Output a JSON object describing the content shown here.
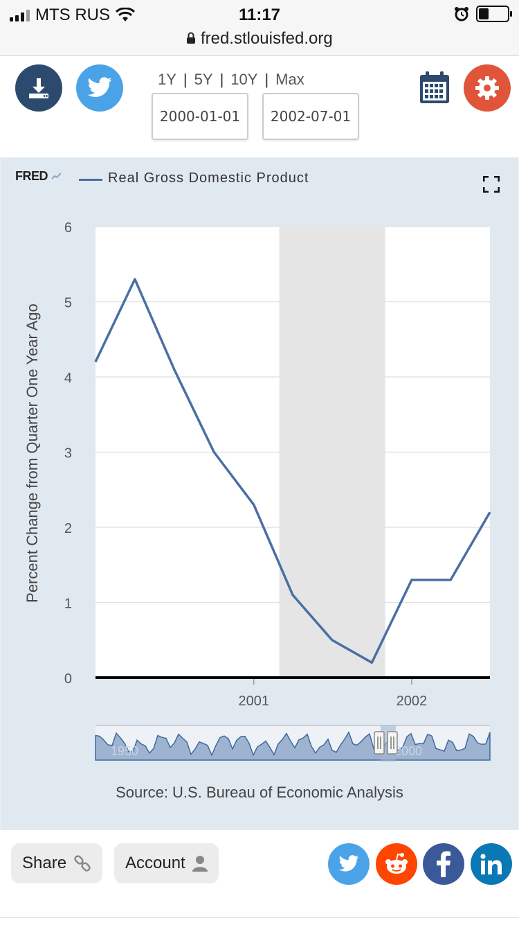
{
  "status_bar": {
    "carrier": "MTS RUS",
    "time": "11:17",
    "url": "fred.stlouisfed.org"
  },
  "toolbar": {
    "range_links": [
      "1Y",
      "5Y",
      "10Y",
      "Max"
    ],
    "start_date": "2000-01-01",
    "end_date": "2002-07-01",
    "colors": {
      "download": "#2c4a6e",
      "twitter": "#4aa3e6",
      "calendar": "#2c4a6e",
      "settings": "#e0543a"
    }
  },
  "chart_header": {
    "logo": "FRED",
    "legend": "Real Gross Domestic Product"
  },
  "chart_data": {
    "type": "line",
    "title": "",
    "legend": [
      "Real Gross Domestic Product"
    ],
    "ylabel": "Percent Change from Quarter One Year Ago",
    "xlabel": "",
    "ylim": [
      0,
      6
    ],
    "yticks": [
      "0",
      "1",
      "2",
      "3",
      "4",
      "5",
      "6"
    ],
    "xticks": [
      "2001",
      "2002"
    ],
    "x": [
      "2000-01-01",
      "2000-04-01",
      "2000-07-01",
      "2000-10-01",
      "2001-01-01",
      "2001-04-01",
      "2001-07-01",
      "2001-10-01",
      "2002-01-01",
      "2002-04-01",
      "2002-07-01"
    ],
    "series": [
      {
        "name": "Real Gross Domestic Product",
        "values": [
          4.2,
          5.3,
          4.1,
          3.0,
          2.3,
          1.1,
          0.5,
          0.2,
          1.3,
          1.3,
          2.2
        ],
        "color": "#4a6fa3"
      }
    ],
    "recession_shading": [
      "2001-03-01",
      "2001-11-01"
    ],
    "grid": true,
    "navigator": {
      "start_label": "1950",
      "end_label": "2000"
    }
  },
  "source": "Source: U.S. Bureau of Economic Analysis",
  "bottom": {
    "share_label": "Share",
    "account_label": "Account",
    "social": [
      "twitter",
      "reddit",
      "facebook",
      "linkedin"
    ]
  }
}
